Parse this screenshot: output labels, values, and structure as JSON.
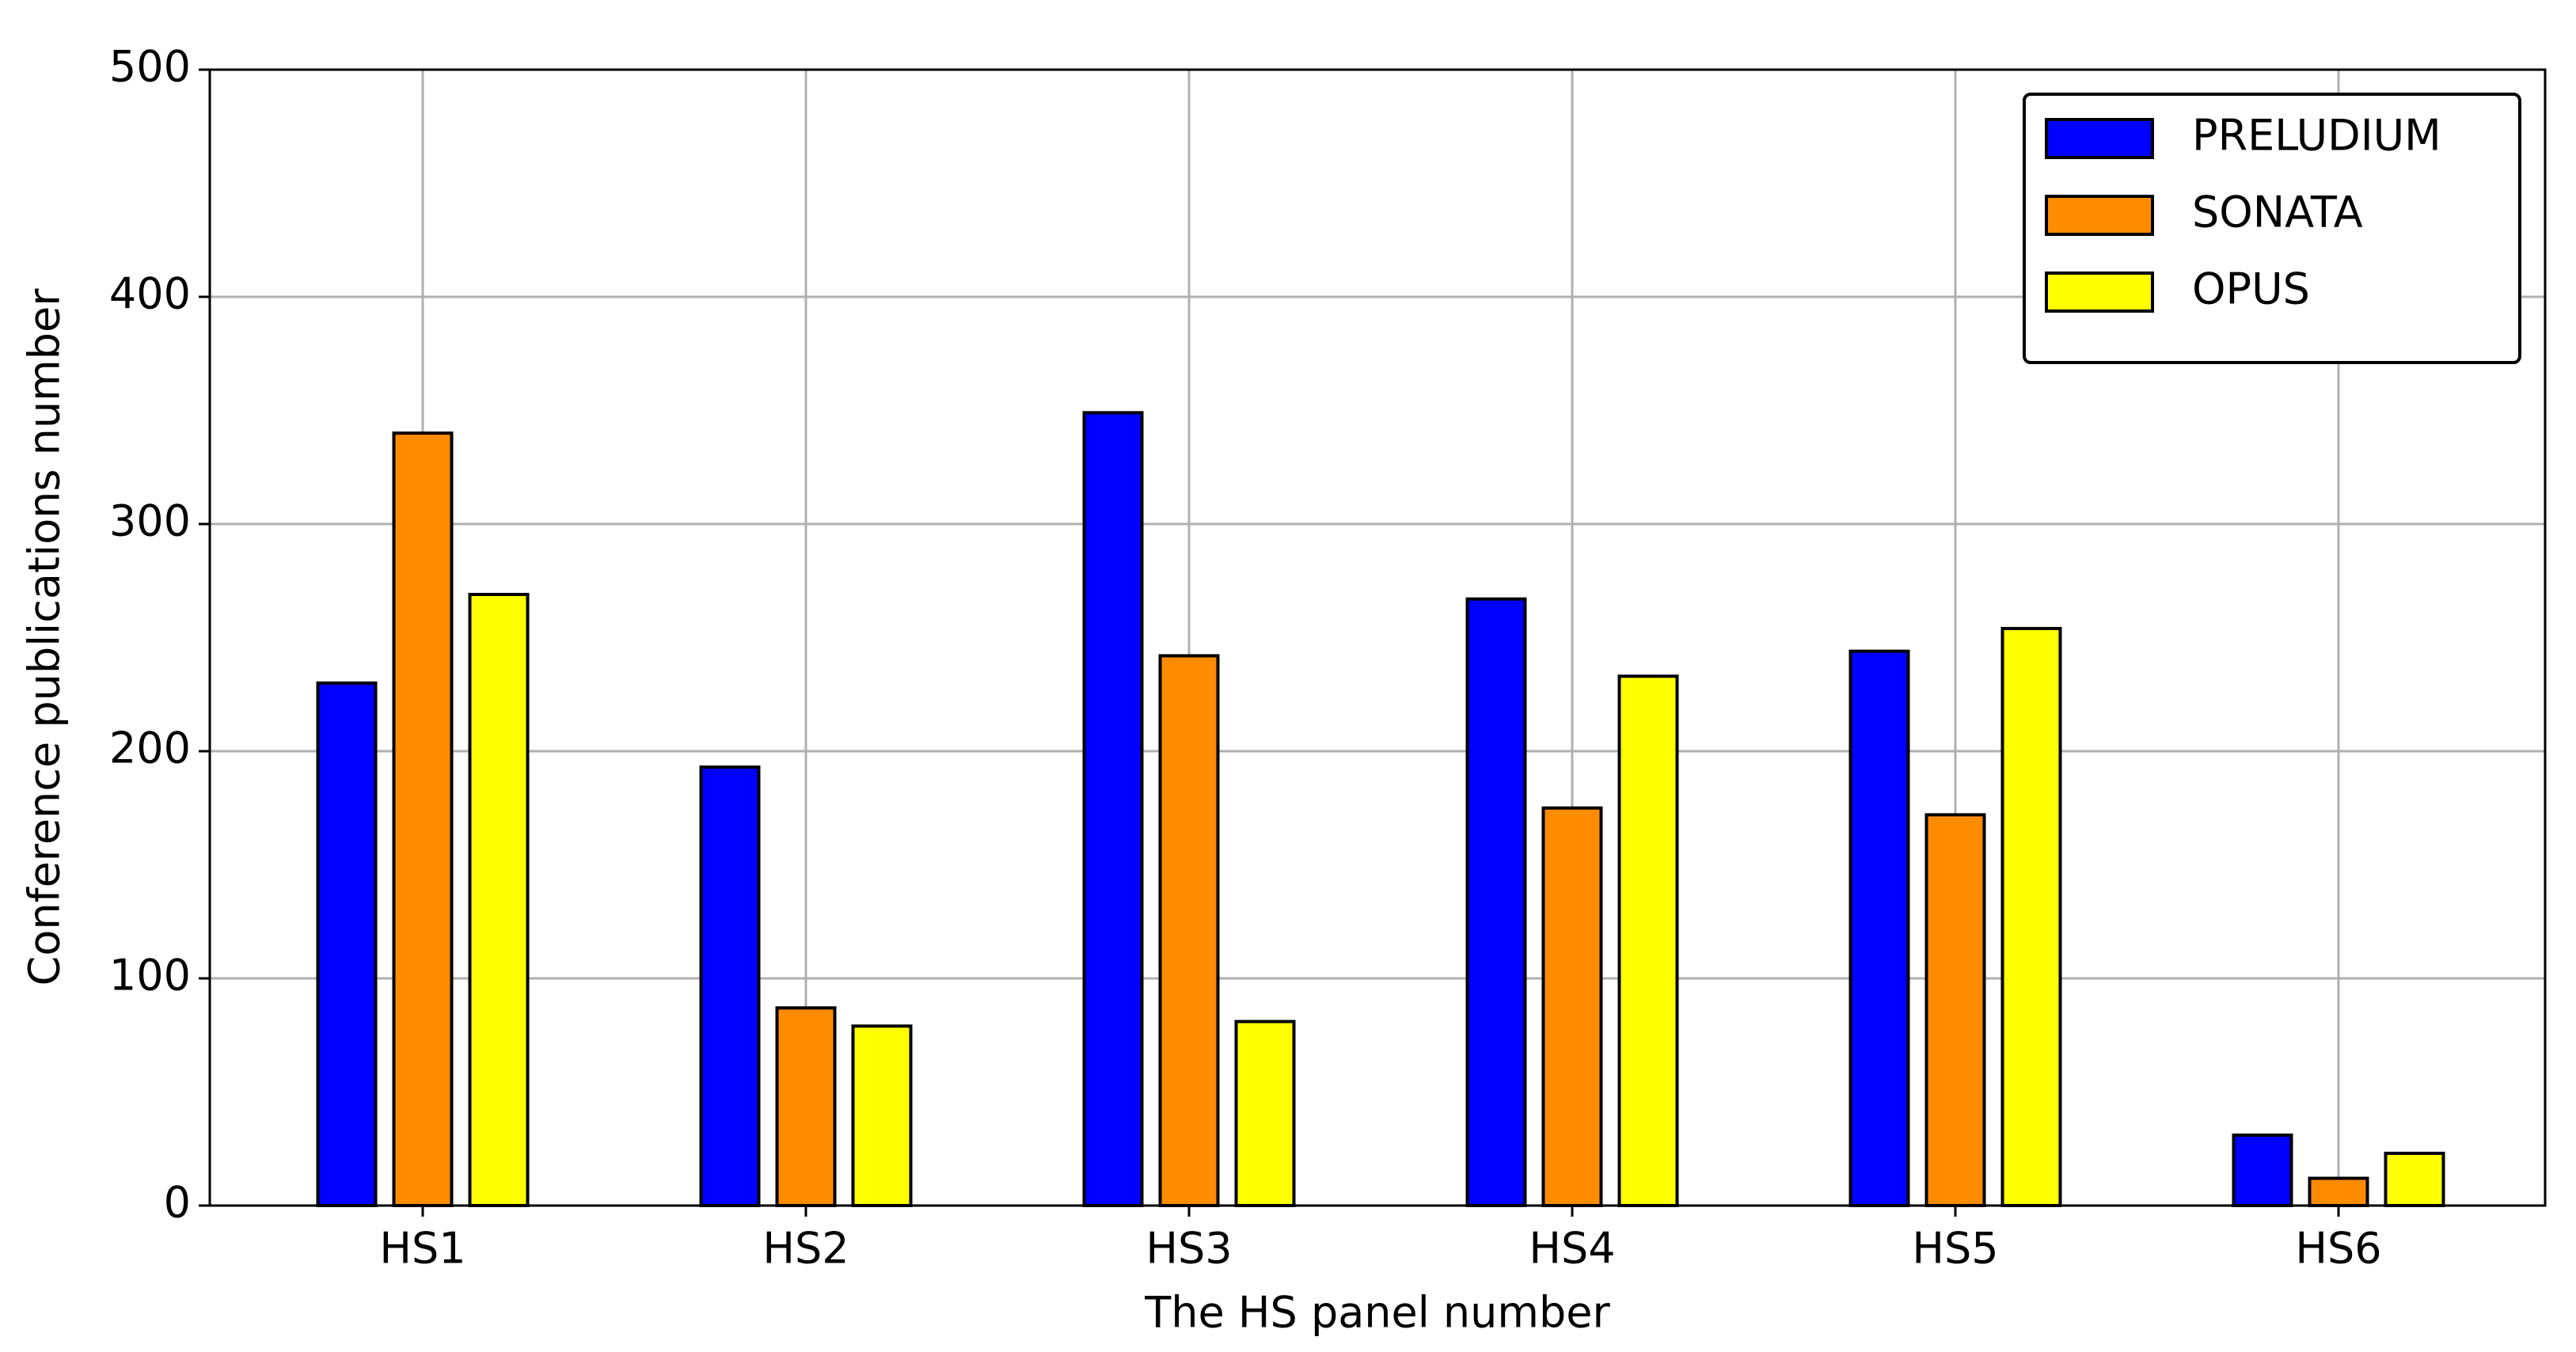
{
  "chart_data": {
    "type": "bar",
    "x_label": "The HS panel number",
    "y_label": "Conference publications number",
    "categories": [
      "HS1",
      "HS2",
      "HS3",
      "HS4",
      "HS5",
      "HS6"
    ],
    "series": [
      {
        "name": "PRELUDIUM",
        "color": "#0000ff",
        "values": [
          230,
          193,
          349,
          267,
          244,
          31
        ]
      },
      {
        "name": "SONATA",
        "color": "#ff8c00",
        "values": [
          340,
          87,
          242,
          175,
          172,
          12
        ]
      },
      {
        "name": "OPUS",
        "color": "#ffff00",
        "values": [
          269,
          79,
          81,
          233,
          254,
          23
        ]
      }
    ],
    "ylim": [
      0,
      500
    ],
    "yticks": [
      0,
      100,
      200,
      300,
      400,
      500
    ],
    "grid": true,
    "legend": "upper right"
  }
}
